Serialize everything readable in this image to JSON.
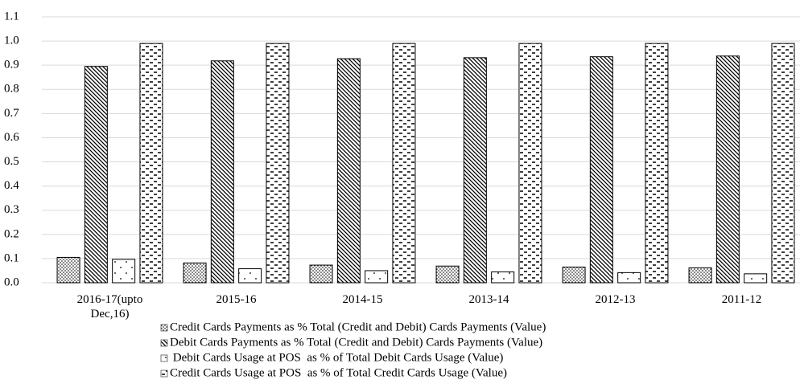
{
  "chart_data": {
    "type": "bar",
    "categories": [
      "2016-17(upto Dec,16)",
      "2015-16",
      "2014-15",
      "2013-14",
      "2012-13",
      "2011-12"
    ],
    "series": [
      {
        "name": "Credit Cards Payments as % Total (Credit and Debit) Cards Payments (Value)",
        "color": "#000000",
        "pattern": "dots",
        "values": [
          0.105,
          0.082,
          0.073,
          0.069,
          0.065,
          0.062
        ]
      },
      {
        "name": "Debit Cards Payments as % Total (Credit and Debit) Cards Payments (Value)",
        "color": "#000000",
        "pattern": "diagonal",
        "values": [
          0.895,
          0.918,
          0.927,
          0.931,
          0.935,
          0.938
        ]
      },
      {
        "name": " Debit Cards Usage at POS  as % of Total Debit Cards Usage (Value)",
        "color": "#000000",
        "pattern": "sparse-dots",
        "values": [
          0.097,
          0.058,
          0.05,
          0.045,
          0.042,
          0.037
        ]
      },
      {
        "name": "Credit Cards Usage at POS  as % of Total Credit Cards Usage (Value)",
        "color": "#000000",
        "pattern": "dashes",
        "values": [
          0.99,
          0.99,
          0.99,
          0.99,
          0.99,
          0.99
        ]
      }
    ],
    "ylim": [
      0,
      1.1
    ],
    "yticks": [
      {
        "value": 0,
        "label": "0.0"
      },
      0.1,
      0.2,
      0.3,
      0.4,
      0.5,
      0.6,
      0.7,
      0.8,
      0.9,
      {
        "value": 1,
        "label": "1.0"
      },
      1.1
    ],
    "grid": true,
    "legend": "bottom"
  }
}
